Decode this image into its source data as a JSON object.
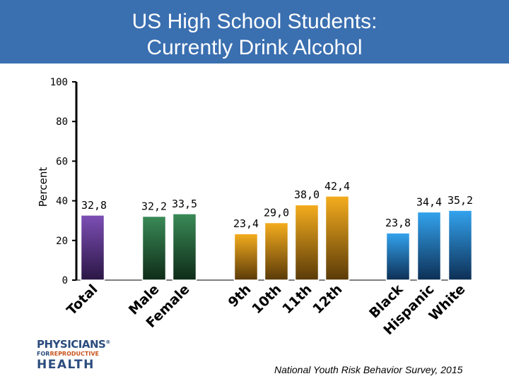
{
  "header": {
    "title_line1": "US High School Students:",
    "title_line2": "Currently Drink Alcohol"
  },
  "chart_data": {
    "type": "bar",
    "title": "US High School Students: Currently Drink Alcohol",
    "ylabel": "Percent",
    "xlabel": "",
    "ylim": [
      0,
      100
    ],
    "yticks": [
      "0",
      "20",
      "40",
      "60",
      "80",
      "100"
    ],
    "grid": false,
    "categories": [
      "Total",
      "Male",
      "Female",
      "9th",
      "10th",
      "11th",
      "12th",
      "Black",
      "Hispanic",
      "White"
    ],
    "values": [
      32.8,
      32.2,
      33.5,
      23.4,
      29.0,
      38.0,
      42.4,
      23.8,
      34.4,
      35.2
    ],
    "value_labels": [
      "32,8",
      "32,2",
      "33,5",
      "23,4",
      "29,0",
      "38,0",
      "42,4",
      "23,8",
      "34,4",
      "35,2"
    ],
    "groups": [
      {
        "members": [
          "Total"
        ],
        "color": "#6a3f9e"
      },
      {
        "members": [
          "Male",
          "Female"
        ],
        "color": "#2f7a4a"
      },
      {
        "members": [
          "9th",
          "10th",
          "11th",
          "12th"
        ],
        "color": "#e8a317"
      },
      {
        "members": [
          "Black",
          "Hispanic",
          "White"
        ],
        "color": "#2f8fd8"
      }
    ]
  },
  "logo": {
    "line1": "PHYSICIANS",
    "registered": "®",
    "line2_for": "FOR",
    "line2_rest": "REPRODUCTIVE",
    "line3": "HEALTH"
  },
  "footer": {
    "source": "National Youth Risk Behavior Survey, 2015"
  }
}
